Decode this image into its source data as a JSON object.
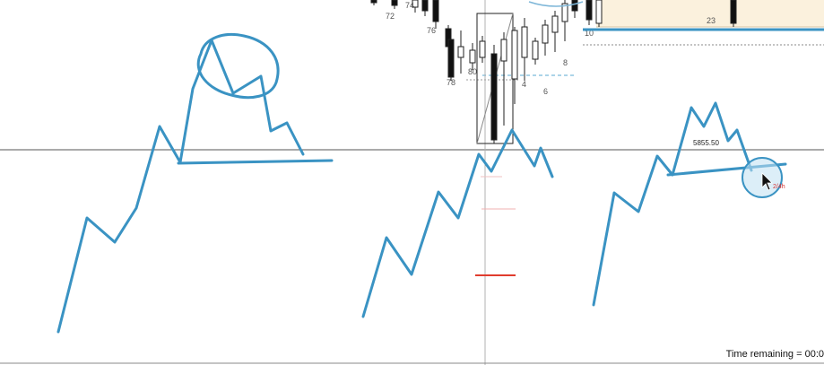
{
  "chart": {
    "bar_labels": [
      "72",
      "74",
      "76",
      "78",
      "80",
      "4",
      "6",
      "8",
      "10",
      "23"
    ],
    "price_tag": "5855.50",
    "cursor_tag": "2/4h"
  },
  "status": {
    "time_remaining": "Time remaining = 00:0"
  },
  "colors": {
    "drawing": "#3a93c3",
    "bull_candle": "#ffffff",
    "bear_candle": "#111111",
    "crosshair": "#555555",
    "highlight_zone": "#fbf1dd",
    "red_tick": "#e03c2e"
  }
}
